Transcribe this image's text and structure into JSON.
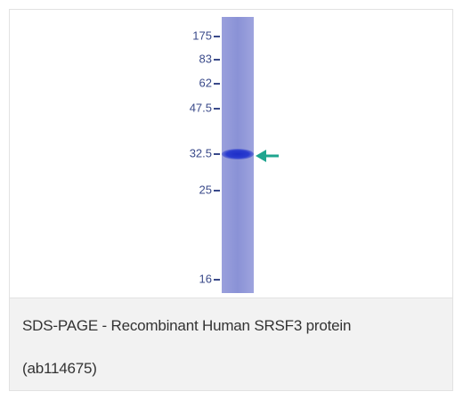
{
  "figure": {
    "markers": [
      "175",
      "83",
      "62",
      "47.5",
      "32.5",
      "25",
      "16"
    ],
    "caption": "SDS-PAGE - Recombinant Human SRSF3 protein (ab114675)"
  }
}
